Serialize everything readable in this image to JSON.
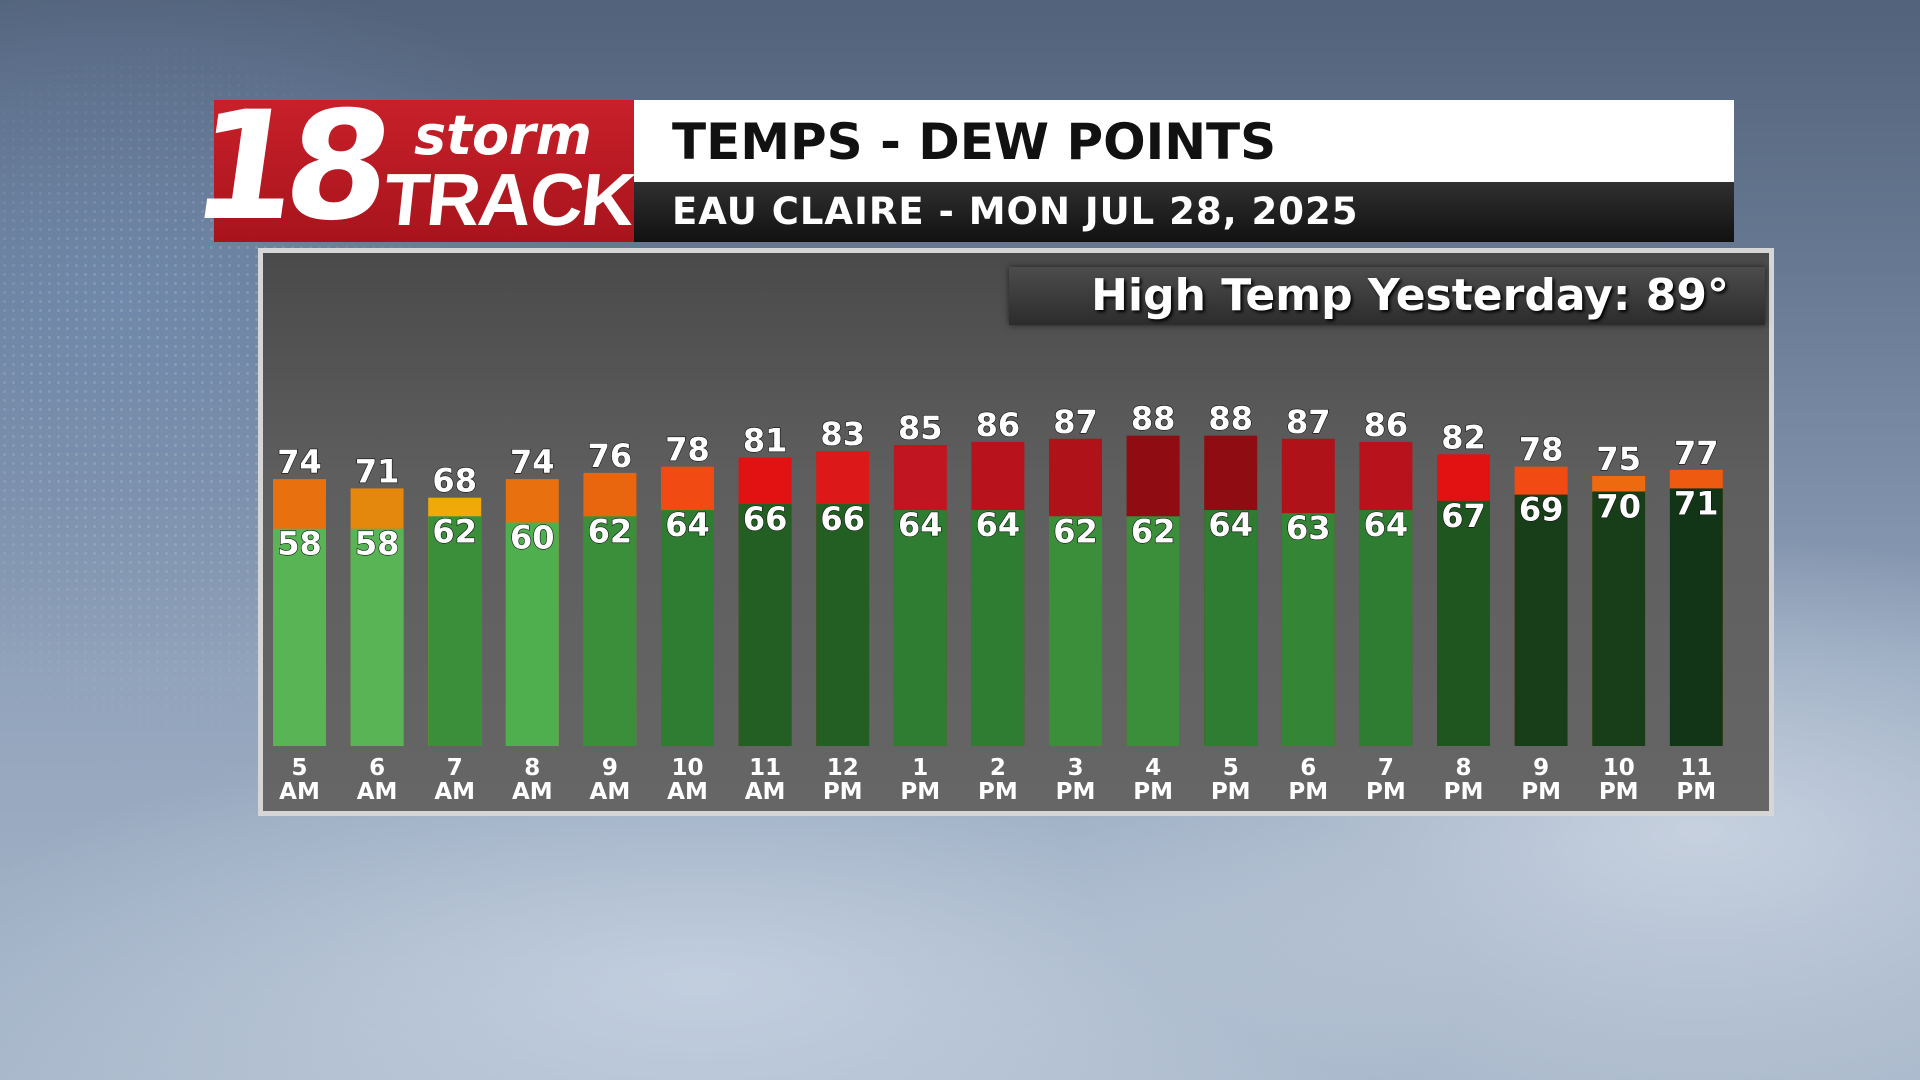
{
  "logo": {
    "number": "18",
    "word1": "storm",
    "word2": "TRACK"
  },
  "header": {
    "title": "TEMPS - DEW POINTS",
    "subtitle": "EAU CLAIRE - MON JUL 28, 2025"
  },
  "high_temp": {
    "label": "High Temp Yesterday:",
    "value": "89°"
  },
  "chart_data": {
    "type": "bar",
    "categories": [
      [
        "5",
        "AM"
      ],
      [
        "6",
        "AM"
      ],
      [
        "7",
        "AM"
      ],
      [
        "8",
        "AM"
      ],
      [
        "9",
        "AM"
      ],
      [
        "10",
        "AM"
      ],
      [
        "11",
        "AM"
      ],
      [
        "12",
        "PM"
      ],
      [
        "1",
        "PM"
      ],
      [
        "2",
        "PM"
      ],
      [
        "3",
        "PM"
      ],
      [
        "4",
        "PM"
      ],
      [
        "5",
        "PM"
      ],
      [
        "6",
        "PM"
      ],
      [
        "7",
        "PM"
      ],
      [
        "8",
        "PM"
      ],
      [
        "9",
        "PM"
      ],
      [
        "10",
        "PM"
      ],
      [
        "11",
        "PM"
      ]
    ],
    "series": [
      {
        "values": [
          74,
          71,
          68,
          74,
          76,
          78,
          81,
          83,
          85,
          86,
          87,
          88,
          88,
          87,
          86,
          82,
          78,
          75,
          77
        ]
      },
      {
        "values": [
          58,
          58,
          62,
          60,
          62,
          64,
          66,
          66,
          64,
          64,
          62,
          62,
          64,
          63,
          64,
          67,
          69,
          70,
          71
        ]
      }
    ],
    "temp_colors": [
      "#e8700f",
      "#e4870d",
      "#efaa0a",
      "#e8700f",
      "#e9660f",
      "#f14a12",
      "#e31212",
      "#dd1818",
      "#c11522",
      "#b8131d",
      "#b01219",
      "#8e0c12",
      "#8e0c12",
      "#b01219",
      "#b8131d",
      "#e31212",
      "#f14a12",
      "#ee6a0f",
      "#ee5a10"
    ],
    "dew_colors": [
      "#59b456",
      "#59b456",
      "#3b8f3b",
      "#4fae4d",
      "#3b8f3b",
      "#2f7d33",
      "#235f22",
      "#235f22",
      "#2f7d33",
      "#2f7d33",
      "#3b8f3b",
      "#3b8f3b",
      "#2f7d33",
      "#358537",
      "#2f7d33",
      "#1f561f",
      "#173e18",
      "#173e18",
      "#133517"
    ],
    "ylim": [
      0,
      100
    ]
  }
}
